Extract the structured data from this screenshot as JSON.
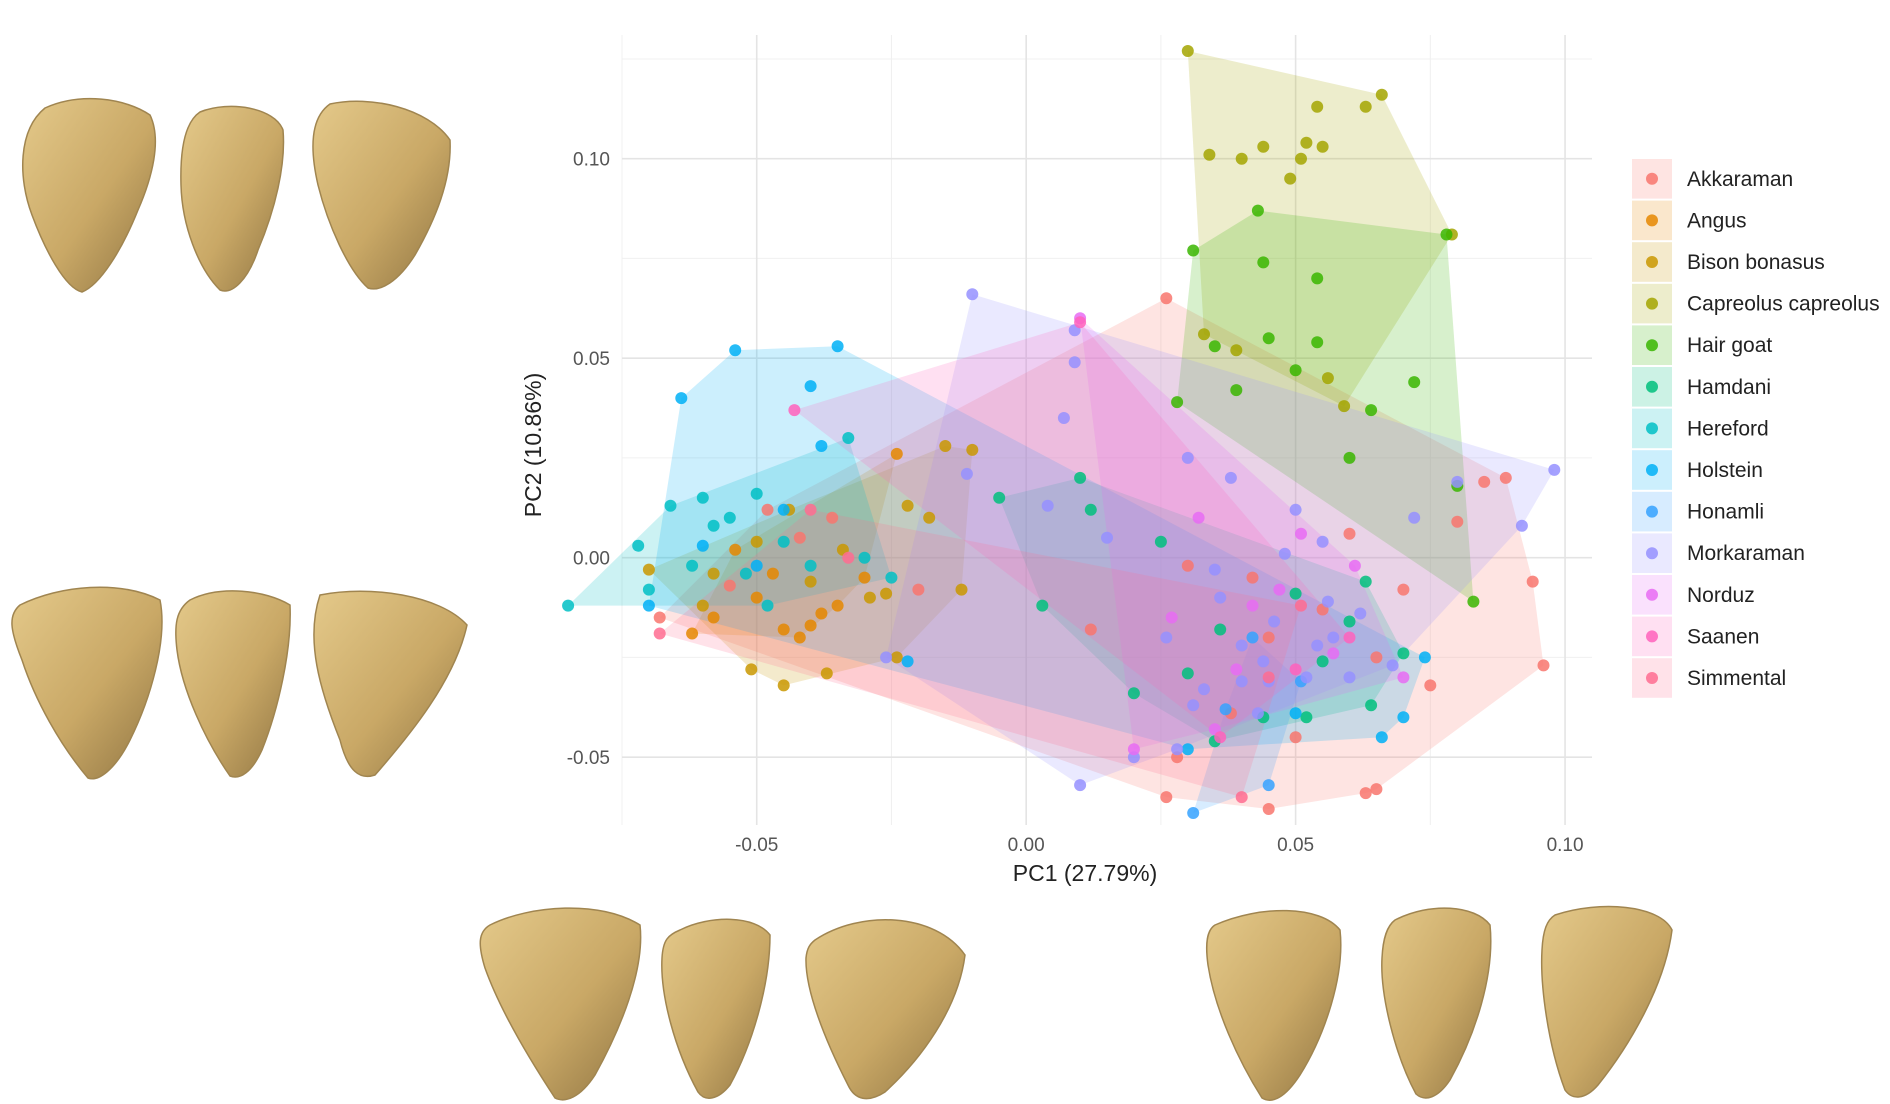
{
  "chart_data": {
    "type": "scatter",
    "xlabel": "PC1 (27.79%)",
    "ylabel": "PC2 (10.86%)",
    "xlim": [
      -0.075,
      0.105
    ],
    "ylim": [
      -0.067,
      0.131
    ],
    "xticks": [
      -0.05,
      0.0,
      0.05,
      0.1
    ],
    "xtick_labels": [
      "-0.05",
      "0.00",
      "0.05",
      "0.10"
    ],
    "yticks": [
      -0.05,
      0.0,
      0.05,
      0.1
    ],
    "ytick_labels": [
      "-0.05",
      "0.00",
      "0.05",
      "0.10"
    ],
    "grid": true,
    "legend_position": "right",
    "hulls": true,
    "series": [
      {
        "name": "Akkaraman",
        "color": "#F8766D",
        "points": [
          [
            0.026,
            0.065
          ],
          [
            0.026,
            -0.06
          ],
          [
            0.045,
            -0.063
          ],
          [
            0.063,
            -0.059
          ],
          [
            0.096,
            -0.027
          ],
          [
            0.094,
            -0.006
          ],
          [
            0.089,
            0.02
          ],
          [
            0.08,
            0.009
          ],
          [
            0.03,
            -0.002
          ],
          [
            0.045,
            -0.02
          ],
          [
            0.055,
            -0.013
          ],
          [
            0.06,
            0.006
          ],
          [
            0.07,
            -0.008
          ],
          [
            0.085,
            0.019
          ],
          [
            0.038,
            -0.039
          ],
          [
            0.05,
            -0.045
          ],
          [
            0.065,
            -0.058
          ],
          [
            -0.055,
            -0.007
          ],
          [
            -0.048,
            0.012
          ],
          [
            -0.036,
            0.01
          ],
          [
            -0.068,
            -0.015
          ],
          [
            -0.042,
            0.005
          ],
          [
            -0.02,
            -0.008
          ],
          [
            0.012,
            -0.018
          ],
          [
            0.028,
            -0.05
          ],
          [
            0.065,
            -0.025
          ],
          [
            0.075,
            -0.032
          ],
          [
            0.042,
            -0.005
          ]
        ]
      },
      {
        "name": "Angus",
        "color": "#E58700",
        "points": [
          [
            -0.062,
            -0.019
          ],
          [
            -0.045,
            -0.018
          ],
          [
            -0.04,
            -0.017
          ],
          [
            -0.038,
            -0.014
          ],
          [
            -0.024,
            0.026
          ],
          [
            -0.05,
            -0.01
          ],
          [
            -0.058,
            -0.015
          ],
          [
            -0.035,
            -0.012
          ],
          [
            -0.047,
            -0.004
          ],
          [
            -0.03,
            -0.005
          ],
          [
            -0.054,
            0.002
          ],
          [
            -0.042,
            -0.02
          ]
        ]
      },
      {
        "name": "Bison bonasus",
        "color": "#C99800",
        "points": [
          [
            -0.051,
            -0.028
          ],
          [
            -0.045,
            -0.032
          ],
          [
            -0.037,
            -0.029
          ],
          [
            -0.024,
            -0.025
          ],
          [
            -0.015,
            0.028
          ],
          [
            -0.01,
            0.027
          ],
          [
            -0.022,
            0.013
          ],
          [
            -0.018,
            0.01
          ],
          [
            -0.058,
            -0.004
          ],
          [
            -0.04,
            -0.006
          ],
          [
            -0.029,
            -0.01
          ],
          [
            -0.06,
            -0.012
          ],
          [
            -0.05,
            0.004
          ],
          [
            -0.07,
            -0.003
          ],
          [
            -0.034,
            0.002
          ],
          [
            -0.026,
            -0.009
          ],
          [
            -0.012,
            -0.008
          ],
          [
            -0.044,
            0.012
          ]
        ]
      },
      {
        "name": "Capreolus capreolus",
        "color": "#A3A500",
        "points": [
          [
            0.03,
            0.127
          ],
          [
            0.066,
            0.116
          ],
          [
            0.054,
            0.113
          ],
          [
            0.063,
            0.113
          ],
          [
            0.034,
            0.101
          ],
          [
            0.04,
            0.1
          ],
          [
            0.044,
            0.103
          ],
          [
            0.051,
            0.1
          ],
          [
            0.055,
            0.103
          ],
          [
            0.052,
            0.104
          ],
          [
            0.079,
            0.081
          ],
          [
            0.049,
            0.095
          ],
          [
            0.033,
            0.056
          ],
          [
            0.056,
            0.045
          ],
          [
            0.059,
            0.038
          ],
          [
            0.039,
            0.052
          ]
        ]
      },
      {
        "name": "Hair goat",
        "color": "#39B600",
        "points": [
          [
            0.031,
            0.077
          ],
          [
            0.043,
            0.087
          ],
          [
            0.044,
            0.074
          ],
          [
            0.054,
            0.07
          ],
          [
            0.078,
            0.081
          ],
          [
            0.054,
            0.054
          ],
          [
            0.072,
            0.044
          ],
          [
            0.035,
            0.053
          ],
          [
            0.045,
            0.055
          ],
          [
            0.064,
            0.037
          ],
          [
            0.08,
            0.018
          ],
          [
            0.083,
            -0.011
          ],
          [
            0.06,
            0.025
          ],
          [
            0.039,
            0.042
          ],
          [
            0.028,
            0.039
          ],
          [
            0.05,
            0.047
          ]
        ]
      },
      {
        "name": "Hamdani",
        "color": "#00BF7D",
        "points": [
          [
            0.012,
            0.012
          ],
          [
            0.003,
            -0.012
          ],
          [
            0.02,
            -0.034
          ],
          [
            0.052,
            -0.04
          ],
          [
            0.064,
            -0.037
          ],
          [
            0.035,
            -0.046
          ],
          [
            0.055,
            -0.026
          ],
          [
            0.03,
            -0.029
          ],
          [
            0.044,
            -0.04
          ],
          [
            0.06,
            -0.016
          ],
          [
            0.063,
            -0.006
          ],
          [
            0.025,
            0.004
          ],
          [
            0.036,
            -0.018
          ],
          [
            -0.005,
            0.015
          ],
          [
            0.01,
            0.02
          ],
          [
            0.07,
            -0.024
          ],
          [
            0.05,
            -0.009
          ]
        ]
      },
      {
        "name": "Hereford",
        "color": "#00BFC4",
        "points": [
          [
            -0.085,
            -0.012
          ],
          [
            -0.072,
            0.003
          ],
          [
            -0.066,
            0.013
          ],
          [
            -0.05,
            0.016
          ],
          [
            -0.033,
            0.03
          ],
          [
            -0.058,
            0.008
          ],
          [
            -0.045,
            0.004
          ],
          [
            -0.07,
            -0.008
          ],
          [
            -0.062,
            -0.002
          ],
          [
            -0.052,
            -0.004
          ],
          [
            -0.04,
            -0.002
          ],
          [
            -0.03,
            0.0
          ],
          [
            -0.025,
            -0.005
          ],
          [
            -0.06,
            0.015
          ],
          [
            -0.048,
            -0.012
          ],
          [
            -0.055,
            0.01
          ]
        ]
      },
      {
        "name": "Holstein",
        "color": "#00B0F6",
        "points": [
          [
            -0.054,
            0.052
          ],
          [
            -0.035,
            0.053
          ],
          [
            -0.04,
            0.043
          ],
          [
            -0.064,
            0.04
          ],
          [
            -0.038,
            0.028
          ],
          [
            -0.07,
            -0.012
          ],
          [
            -0.022,
            -0.026
          ],
          [
            0.03,
            -0.048
          ],
          [
            0.05,
            -0.039
          ],
          [
            0.066,
            -0.045
          ],
          [
            0.074,
            -0.025
          ],
          [
            0.07,
            -0.04
          ],
          [
            -0.06,
            0.003
          ],
          [
            -0.05,
            -0.002
          ],
          [
            -0.045,
            0.012
          ]
        ]
      },
      {
        "name": "Honamli",
        "color": "#35A2FF",
        "points": [
          [
            0.031,
            -0.064
          ],
          [
            0.045,
            -0.057
          ],
          [
            0.051,
            -0.031
          ],
          [
            0.037,
            -0.038
          ],
          [
            0.042,
            -0.02
          ]
        ]
      },
      {
        "name": "Morkaraman",
        "color": "#9590FF",
        "points": [
          [
            -0.01,
            0.066
          ],
          [
            0.009,
            0.057
          ],
          [
            0.009,
            0.049
          ],
          [
            -0.011,
            0.021
          ],
          [
            0.007,
            0.035
          ],
          [
            0.098,
            0.022
          ],
          [
            0.092,
            0.008
          ],
          [
            0.08,
            0.019
          ],
          [
            0.01,
            -0.057
          ],
          [
            0.02,
            -0.05
          ],
          [
            0.028,
            -0.048
          ],
          [
            0.045,
            -0.031
          ],
          [
            0.052,
            -0.03
          ],
          [
            0.04,
            -0.022
          ],
          [
            0.035,
            -0.003
          ],
          [
            0.048,
            0.001
          ],
          [
            0.056,
            -0.011
          ],
          [
            0.033,
            -0.033
          ],
          [
            0.043,
            -0.039
          ],
          [
            0.057,
            -0.02
          ],
          [
            0.06,
            -0.03
          ],
          [
            0.068,
            -0.027
          ],
          [
            0.072,
            0.01
          ],
          [
            0.05,
            0.012
          ],
          [
            0.03,
            0.025
          ],
          [
            0.015,
            0.005
          ],
          [
            0.004,
            0.013
          ],
          [
            -0.026,
            -0.025
          ],
          [
            0.038,
            0.02
          ],
          [
            0.055,
            0.004
          ],
          [
            0.062,
            -0.014
          ],
          [
            0.046,
            -0.016
          ],
          [
            0.036,
            -0.01
          ],
          [
            0.026,
            -0.02
          ],
          [
            0.044,
            -0.026
          ],
          [
            0.054,
            -0.022
          ],
          [
            0.04,
            -0.031
          ],
          [
            0.031,
            -0.037
          ]
        ]
      },
      {
        "name": "Norduz",
        "color": "#E76BF3",
        "points": [
          [
            0.01,
            0.06
          ],
          [
            0.02,
            -0.048
          ],
          [
            0.035,
            -0.043
          ],
          [
            0.07,
            -0.03
          ],
          [
            0.061,
            -0.002
          ],
          [
            0.047,
            -0.008
          ],
          [
            0.032,
            0.01
          ],
          [
            0.051,
            0.006
          ],
          [
            0.027,
            -0.015
          ],
          [
            0.042,
            -0.012
          ],
          [
            0.057,
            -0.024
          ],
          [
            0.039,
            -0.028
          ]
        ]
      },
      {
        "name": "Saanen",
        "color": "#FF62BC",
        "points": [
          [
            0.01,
            0.059
          ],
          [
            -0.043,
            0.037
          ],
          [
            0.036,
            -0.045
          ],
          [
            0.06,
            -0.02
          ],
          [
            0.05,
            -0.028
          ]
        ]
      },
      {
        "name": "Simmental",
        "color": "#FF6C91",
        "points": [
          [
            -0.068,
            -0.019
          ],
          [
            -0.04,
            0.012
          ],
          [
            -0.033,
            0.0
          ],
          [
            0.04,
            -0.06
          ],
          [
            0.051,
            -0.012
          ],
          [
            0.045,
            -0.03
          ]
        ]
      }
    ]
  },
  "images": [
    {
      "label": "top-left bone views"
    },
    {
      "label": "middle-left bone views"
    },
    {
      "label": "bottom-center bone views"
    },
    {
      "label": "bottom-right bone views"
    }
  ]
}
